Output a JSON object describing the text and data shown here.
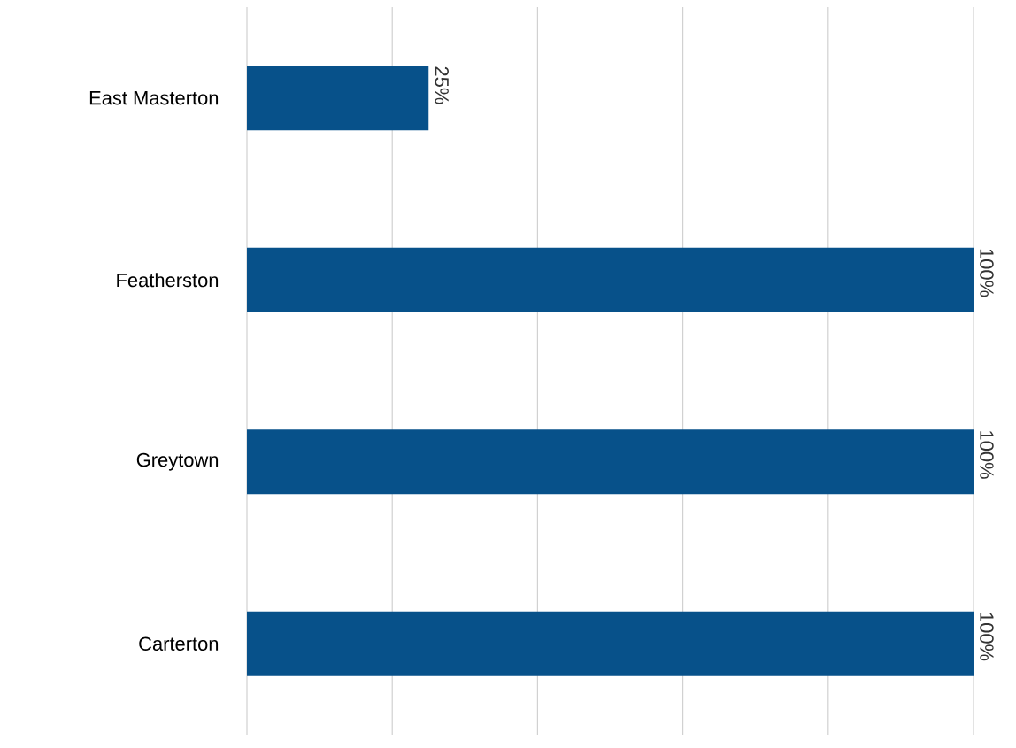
{
  "chart_data": {
    "type": "bar",
    "orientation": "horizontal",
    "categories": [
      "East Masterton",
      "Featherston",
      "Greytown",
      "Carterton"
    ],
    "values": [
      25,
      100,
      100,
      100
    ],
    "value_labels": [
      "25%",
      "100%",
      "100%",
      "100%"
    ],
    "color": "#07518a",
    "xlim": [
      0,
      100
    ],
    "xticks": [
      {
        "value": 0,
        "label": null
      },
      {
        "value": 20,
        "label": null
      },
      {
        "value": 40,
        "label": null
      },
      {
        "value": 60,
        "label": null
      },
      {
        "value": 80,
        "label": null
      },
      {
        "value": 100,
        "label": null
      }
    ],
    "grid": "x",
    "tick_labels": "y"
  }
}
